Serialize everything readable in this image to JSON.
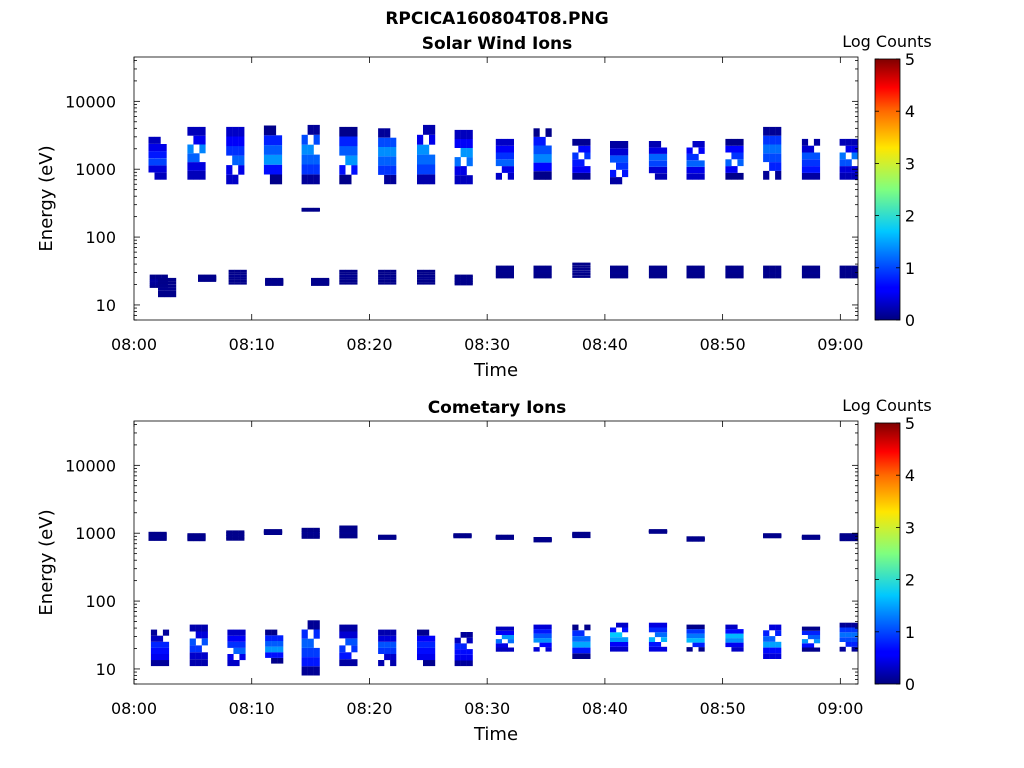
{
  "figure_title": "RPCICA160804T08.PNG",
  "chart_data": [
    {
      "type": "heatmap",
      "title": "Solar Wind Ions",
      "xlabel": "Time",
      "ylabel": "Energy (eV)",
      "x_ticks": [
        "08:00",
        "08:10",
        "08:20",
        "08:30",
        "08:40",
        "08:50",
        "09:00"
      ],
      "x_range_minutes": [
        0,
        61.5
      ],
      "y_scale": "log",
      "y_ticks": [
        10,
        100,
        1000,
        10000
      ],
      "y_tick_labels": [
        "10",
        "100",
        "1000",
        "10000"
      ],
      "y_range": [
        6,
        45000
      ],
      "colorbar": {
        "label": "Log Counts",
        "range": [
          0,
          5
        ],
        "ticks": [
          "0",
          "1",
          "2",
          "3",
          "4",
          "5"
        ],
        "colormap": "jet"
      },
      "cells": [
        {
          "t": 2.0,
          "e_lo": 700,
          "e_hi": 3000,
          "peak": 1.2
        },
        {
          "t": 2.1,
          "e_lo": 18,
          "e_hi": 28,
          "peak": 0.2
        },
        {
          "t": 2.8,
          "e_lo": 13,
          "e_hi": 25,
          "peak": 0.1
        },
        {
          "t": 5.3,
          "e_lo": 700,
          "e_hi": 4200,
          "peak": 1.5
        },
        {
          "t": 6.2,
          "e_lo": 23,
          "e_hi": 28,
          "peak": 0.1
        },
        {
          "t": 8.6,
          "e_lo": 600,
          "e_hi": 4200,
          "peak": 1.4
        },
        {
          "t": 8.8,
          "e_lo": 20,
          "e_hi": 33,
          "peak": 0.1
        },
        {
          "t": 11.8,
          "e_lo": 600,
          "e_hi": 4400,
          "peak": 1.6
        },
        {
          "t": 11.9,
          "e_lo": 20,
          "e_hi": 25,
          "peak": 0.1
        },
        {
          "t": 15.0,
          "e_lo": 600,
          "e_hi": 4500,
          "peak": 1.8
        },
        {
          "t": 15.0,
          "e_lo": 255,
          "e_hi": 270,
          "peak": 0.1
        },
        {
          "t": 15.8,
          "e_lo": 20,
          "e_hi": 25,
          "peak": 0.1
        },
        {
          "t": 18.2,
          "e_lo": 600,
          "e_hi": 4200,
          "peak": 1.6
        },
        {
          "t": 18.2,
          "e_lo": 20,
          "e_hi": 33,
          "peak": 0.1
        },
        {
          "t": 21.5,
          "e_lo": 600,
          "e_hi": 4000,
          "peak": 1.8
        },
        {
          "t": 21.5,
          "e_lo": 20,
          "e_hi": 33,
          "peak": 0.1
        },
        {
          "t": 24.8,
          "e_lo": 600,
          "e_hi": 4500,
          "peak": 1.7
        },
        {
          "t": 24.8,
          "e_lo": 20,
          "e_hi": 33,
          "peak": 0.1
        },
        {
          "t": 28.0,
          "e_lo": 600,
          "e_hi": 3800,
          "peak": 1.6
        },
        {
          "t": 28.0,
          "e_lo": 20,
          "e_hi": 28,
          "peak": 0.1
        },
        {
          "t": 31.5,
          "e_lo": 700,
          "e_hi": 2800,
          "peak": 1.4
        },
        {
          "t": 31.5,
          "e_lo": 25,
          "e_hi": 38,
          "peak": 0.1
        },
        {
          "t": 34.7,
          "e_lo": 700,
          "e_hi": 4000,
          "peak": 1.5
        },
        {
          "t": 34.7,
          "e_lo": 25,
          "e_hi": 38,
          "peak": 0.1
        },
        {
          "t": 38.0,
          "e_lo": 700,
          "e_hi": 2800,
          "peak": 1.2
        },
        {
          "t": 38.0,
          "e_lo": 25,
          "e_hi": 42,
          "peak": 0.1
        },
        {
          "t": 41.2,
          "e_lo": 600,
          "e_hi": 2600,
          "peak": 1.3
        },
        {
          "t": 41.2,
          "e_lo": 25,
          "e_hi": 38,
          "peak": 0.1
        },
        {
          "t": 44.5,
          "e_lo": 700,
          "e_hi": 2600,
          "peak": 1.3
        },
        {
          "t": 44.5,
          "e_lo": 25,
          "e_hi": 38,
          "peak": 0.1
        },
        {
          "t": 47.7,
          "e_lo": 700,
          "e_hi": 2600,
          "peak": 1.4
        },
        {
          "t": 47.7,
          "e_lo": 25,
          "e_hi": 38,
          "peak": 0.1
        },
        {
          "t": 51.0,
          "e_lo": 700,
          "e_hi": 2800,
          "peak": 1.3
        },
        {
          "t": 51.0,
          "e_lo": 25,
          "e_hi": 38,
          "peak": 0.1
        },
        {
          "t": 54.2,
          "e_lo": 700,
          "e_hi": 4200,
          "peak": 1.6
        },
        {
          "t": 54.2,
          "e_lo": 25,
          "e_hi": 38,
          "peak": 0.1
        },
        {
          "t": 57.5,
          "e_lo": 700,
          "e_hi": 2800,
          "peak": 1.3
        },
        {
          "t": 57.5,
          "e_lo": 25,
          "e_hi": 38,
          "peak": 0.1
        },
        {
          "t": 60.7,
          "e_lo": 700,
          "e_hi": 2800,
          "peak": 1.4
        },
        {
          "t": 60.7,
          "e_lo": 25,
          "e_hi": 38,
          "peak": 0.1
        }
      ]
    },
    {
      "type": "heatmap",
      "title": "Cometary Ions",
      "xlabel": "Time",
      "ylabel": "Energy (eV)",
      "x_ticks": [
        "08:00",
        "08:10",
        "08:20",
        "08:30",
        "08:40",
        "08:50",
        "09:00"
      ],
      "x_range_minutes": [
        0,
        61.5
      ],
      "y_scale": "log",
      "y_ticks": [
        10,
        100,
        1000,
        10000
      ],
      "y_tick_labels": [
        "10",
        "100",
        "1000",
        "10000"
      ],
      "y_range": [
        6,
        45000
      ],
      "colorbar": {
        "label": "Log Counts",
        "range": [
          0,
          5
        ],
        "ticks": [
          "0",
          "1",
          "2",
          "3",
          "4",
          "5"
        ],
        "colormap": "jet"
      },
      "cells": [
        {
          "t": 2.0,
          "e_lo": 800,
          "e_hi": 1050,
          "peak": 0.1
        },
        {
          "t": 2.2,
          "e_lo": 11,
          "e_hi": 38,
          "peak": 1.0
        },
        {
          "t": 5.3,
          "e_lo": 800,
          "e_hi": 1000,
          "peak": 0.1
        },
        {
          "t": 5.5,
          "e_lo": 11,
          "e_hi": 45,
          "peak": 1.2
        },
        {
          "t": 8.6,
          "e_lo": 800,
          "e_hi": 1100,
          "peak": 0.1
        },
        {
          "t": 8.7,
          "e_lo": 11,
          "e_hi": 38,
          "peak": 1.4
        },
        {
          "t": 11.8,
          "e_lo": 1000,
          "e_hi": 1150,
          "peak": 0.1
        },
        {
          "t": 11.9,
          "e_lo": 12,
          "e_hi": 38,
          "peak": 1.6
        },
        {
          "t": 15.0,
          "e_lo": 850,
          "e_hi": 1200,
          "peak": 0.1
        },
        {
          "t": 15.0,
          "e_lo": 8,
          "e_hi": 52,
          "peak": 1.5
        },
        {
          "t": 18.2,
          "e_lo": 850,
          "e_hi": 1300,
          "peak": 0.1
        },
        {
          "t": 18.2,
          "e_lo": 11,
          "e_hi": 45,
          "peak": 1.3
        },
        {
          "t": 21.5,
          "e_lo": 850,
          "e_hi": 950,
          "peak": 0.1
        },
        {
          "t": 21.5,
          "e_lo": 11,
          "e_hi": 38,
          "peak": 1.2
        },
        {
          "t": 24.8,
          "e_lo": 11,
          "e_hi": 38,
          "peak": 1.1
        },
        {
          "t": 27.9,
          "e_lo": 900,
          "e_hi": 1000,
          "peak": 0.1
        },
        {
          "t": 28.0,
          "e_lo": 11,
          "e_hi": 35,
          "peak": 1.0
        },
        {
          "t": 31.5,
          "e_lo": 850,
          "e_hi": 950,
          "peak": 0.1
        },
        {
          "t": 31.5,
          "e_lo": 18,
          "e_hi": 42,
          "peak": 1.6
        },
        {
          "t": 34.7,
          "e_lo": 780,
          "e_hi": 880,
          "peak": 0.1
        },
        {
          "t": 34.7,
          "e_lo": 18,
          "e_hi": 45,
          "peak": 1.7
        },
        {
          "t": 38.0,
          "e_lo": 900,
          "e_hi": 1050,
          "peak": 0.1
        },
        {
          "t": 38.0,
          "e_lo": 14,
          "e_hi": 45,
          "peak": 1.7
        },
        {
          "t": 41.2,
          "e_lo": 18,
          "e_hi": 48,
          "peak": 1.9
        },
        {
          "t": 44.5,
          "e_lo": 1050,
          "e_hi": 1150,
          "peak": 0.1
        },
        {
          "t": 44.5,
          "e_lo": 18,
          "e_hi": 48,
          "peak": 1.9
        },
        {
          "t": 47.7,
          "e_lo": 800,
          "e_hi": 900,
          "peak": 0.1
        },
        {
          "t": 47.7,
          "e_lo": 18,
          "e_hi": 45,
          "peak": 1.8
        },
        {
          "t": 51.0,
          "e_lo": 18,
          "e_hi": 45,
          "peak": 1.8
        },
        {
          "t": 54.2,
          "e_lo": 900,
          "e_hi": 1000,
          "peak": 0.1
        },
        {
          "t": 54.2,
          "e_lo": 14,
          "e_hi": 45,
          "peak": 1.8
        },
        {
          "t": 57.5,
          "e_lo": 850,
          "e_hi": 950,
          "peak": 0.1
        },
        {
          "t": 57.5,
          "e_lo": 18,
          "e_hi": 42,
          "peak": 1.6
        },
        {
          "t": 60.7,
          "e_lo": 800,
          "e_hi": 1000,
          "peak": 0.1
        },
        {
          "t": 60.7,
          "e_lo": 18,
          "e_hi": 48,
          "peak": 1.6
        }
      ]
    }
  ]
}
